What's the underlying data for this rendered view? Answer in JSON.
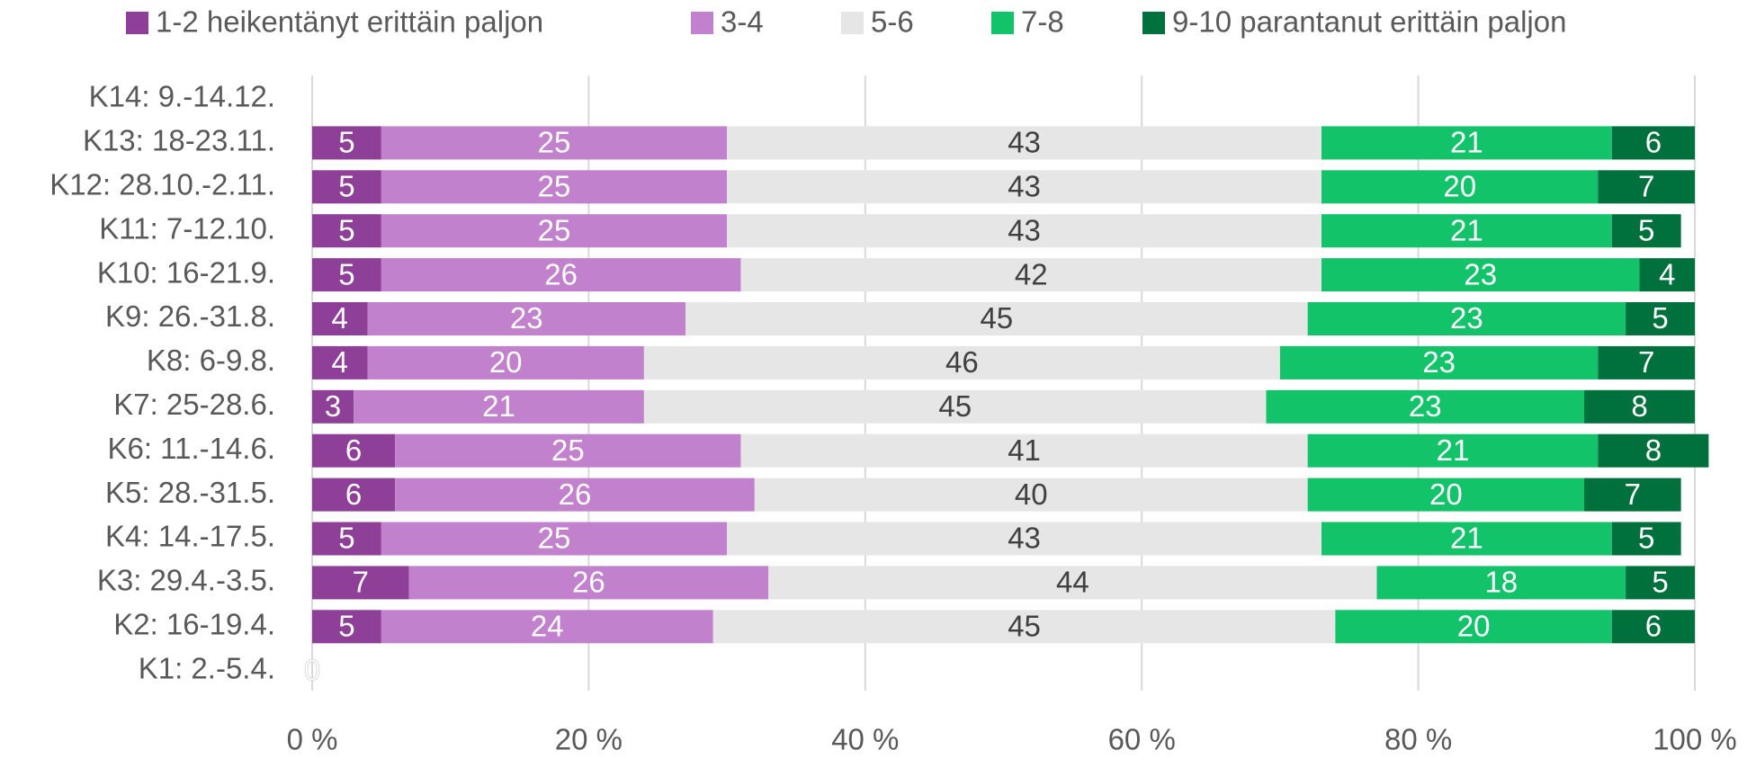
{
  "chart_data": {
    "type": "bar",
    "orientation": "horizontal",
    "stacked": true,
    "categories": [
      "K14: 9.-14.12.",
      "K13: 18-23.11.",
      "K12: 28.10.-2.11.",
      "K11: 7-12.10.",
      "K10: 16-21.9.",
      "K9: 26.-31.8.",
      "K8: 6-9.8.",
      "K7: 25-28.6.",
      "K6: 11.-14.6.",
      "K5: 28.-31.5.",
      "K4: 14.-17.5.",
      "K3: 29.4.-3.5.",
      "K2: 16-19.4.",
      "K1: 2.-5.4."
    ],
    "series": [
      {
        "name": "1-2 heikentänyt erittäin paljon",
        "color": "#8e3f97",
        "values": [
          null,
          5,
          5,
          5,
          5,
          4,
          4,
          3,
          6,
          6,
          5,
          7,
          5,
          0
        ]
      },
      {
        "name": "3-4",
        "color": "#c281cc",
        "values": [
          null,
          25,
          25,
          25,
          26,
          23,
          20,
          21,
          25,
          26,
          25,
          26,
          24,
          null
        ]
      },
      {
        "name": "5-6",
        "color": "#e6e6e6",
        "values": [
          null,
          43,
          43,
          43,
          42,
          45,
          46,
          45,
          41,
          40,
          43,
          44,
          45,
          null
        ]
      },
      {
        "name": "7-8",
        "color": "#12c36a",
        "values": [
          null,
          21,
          20,
          21,
          23,
          23,
          23,
          23,
          21,
          20,
          21,
          18,
          20,
          null
        ]
      },
      {
        "name": "9-10 parantanut erittäin paljon",
        "color": "#00703d",
        "values": [
          null,
          6,
          7,
          5,
          4,
          5,
          7,
          8,
          8,
          7,
          5,
          5,
          6,
          null
        ]
      }
    ],
    "xlim": [
      0,
      100
    ],
    "xticks": [
      {
        "value": 0,
        "label": "0 %"
      },
      {
        "value": 20,
        "label": "20 %"
      },
      {
        "value": 40,
        "label": "40 %"
      },
      {
        "value": 60,
        "label": "60 %"
      },
      {
        "value": 80,
        "label": "80 %"
      },
      {
        "value": 100,
        "label": "100 %"
      }
    ],
    "grid": true,
    "legend": "top"
  }
}
